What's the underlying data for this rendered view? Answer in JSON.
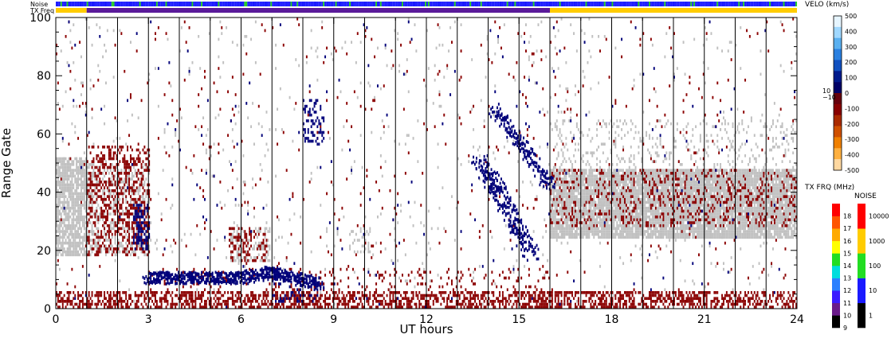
{
  "chart_data": {
    "type": "heatmap",
    "xlabel": "UT hours",
    "ylabel": "Range Gate",
    "xlim": [
      0,
      24
    ],
    "ylim": [
      0,
      100
    ],
    "xticks": [
      0,
      3,
      6,
      9,
      12,
      15,
      18,
      21,
      24
    ],
    "yticks": [
      0,
      20,
      40,
      60,
      80,
      100
    ],
    "grid": "vertical lines every 1 UT hour",
    "top_bars": [
      {
        "label": "Noise",
        "colors": [
          "#1a1aff",
          "#22cc22"
        ]
      },
      {
        "label": "TX Freq",
        "segments": [
          {
            "from": 0,
            "to": 1,
            "color": "#ffcc00"
          },
          {
            "from": 1,
            "to": 16,
            "color": "#5a1a9a"
          },
          {
            "from": 16,
            "to": 24,
            "color": "#ffcc00"
          }
        ]
      }
    ],
    "velocity_colorbar": {
      "title": "VELO (km/s)",
      "ticks": [
        "500",
        "400",
        "300",
        "200",
        "100",
        "0",
        "-100",
        "-200",
        "-300",
        "-400",
        "-500"
      ],
      "center_labels": [
        "10",
        "−10"
      ],
      "colors": [
        "#e6f5ff",
        "#a0d8ff",
        "#5ab0f0",
        "#2a80e0",
        "#1050c0",
        "#001a8c",
        "#000066",
        "#66000c",
        "#880000",
        "#aa2a00",
        "#d05000",
        "#f08000",
        "#ffb040",
        "#ffd8a0"
      ]
    },
    "txfreq_colorbar": {
      "title": "TX FRQ (MHz)",
      "ticks": [
        "9",
        "10",
        "11",
        "12",
        "13",
        "14",
        "15",
        "16",
        "17",
        "18"
      ],
      "colors": [
        "#000000",
        "#6a1a8a",
        "#3a1aff",
        "#2a80ff",
        "#00dddd",
        "#22dd22",
        "#ffff00",
        "#ffaa00",
        "#ff5500",
        "#ff0000"
      ]
    },
    "noise_colorbar": {
      "title": "NOISE",
      "ticks": [
        "1",
        "10",
        "100",
        "1000",
        "10000"
      ],
      "colors": [
        "#000000",
        "#1a1aff",
        "#22dd22",
        "#ffcc00",
        "#ff0000"
      ]
    },
    "regions": [
      {
        "kind": "ground-scatter",
        "color": "#c0c0c0",
        "x": [
          0,
          1
        ],
        "y": [
          18,
          52
        ],
        "density": 0.8
      },
      {
        "kind": "ground-scatter",
        "color": "#c0c0c0",
        "x": [
          1,
          3
        ],
        "y": [
          18,
          50
        ],
        "density": 0.35
      },
      {
        "kind": "ground-scatter",
        "color": "#c0c0c0",
        "x": [
          16,
          24
        ],
        "y": [
          24,
          48
        ],
        "density": 0.9
      },
      {
        "kind": "ground-scatter",
        "color": "#c0c0c0",
        "x": [
          16,
          24
        ],
        "y": [
          48,
          65
        ],
        "density": 0.12
      },
      {
        "kind": "ground-scatter",
        "color": "#c0c0c0",
        "x": [
          5.6,
          6.9
        ],
        "y": [
          16,
          28
        ],
        "density": 0.3
      },
      {
        "kind": "ground-scatter",
        "color": "#c0c0c0",
        "x": [
          9.5,
          10.2
        ],
        "y": [
          19,
          28
        ],
        "density": 0.25
      },
      {
        "kind": "ground-scatter",
        "color": "#c0c0c0",
        "x": [
          0,
          24
        ],
        "y": [
          0,
          100
        ],
        "density": 0.015
      },
      {
        "kind": "velocity",
        "color": "#8b0000",
        "x": [
          0,
          24
        ],
        "y": [
          0,
          6
        ],
        "density": 0.5
      },
      {
        "kind": "velocity",
        "color": "#8b0000",
        "x": [
          3,
          16
        ],
        "y": [
          6,
          14
        ],
        "density": 0.08
      },
      {
        "kind": "velocity",
        "color": "#8b0000",
        "x": [
          1,
          3
        ],
        "y": [
          18,
          56
        ],
        "density": 0.35
      },
      {
        "kind": "velocity",
        "color": "#8b0000",
        "x": [
          0,
          24
        ],
        "y": [
          0,
          100
        ],
        "density": 0.012
      },
      {
        "kind": "velocity",
        "color": "#8b0000",
        "x": [
          16,
          24
        ],
        "y": [
          28,
          48
        ],
        "density": 0.18
      },
      {
        "kind": "velocity",
        "color": "#8b0000",
        "x": [
          5.6,
          6.8
        ],
        "y": [
          16,
          28
        ],
        "density": 0.3
      },
      {
        "kind": "velocity",
        "color": "#00007a",
        "x": [
          2.5,
          3.0
        ],
        "y": [
          20,
          36
        ],
        "density": 0.5
      },
      {
        "kind": "velocity",
        "color": "#00007a",
        "x": [
          7.0,
          8.5
        ],
        "y": [
          2,
          10
        ],
        "density": 0.2
      },
      {
        "kind": "velocity",
        "color": "#00007a",
        "x": [
          8.0,
          8.7
        ],
        "y": [
          56,
          72
        ],
        "density": 0.3
      },
      {
        "kind": "velocity",
        "color": "#00007a",
        "x": [
          0,
          24
        ],
        "y": [
          0,
          100
        ],
        "density": 0.004
      }
    ],
    "tracks": [
      {
        "color": "#00007a",
        "points": [
          [
            13.7,
            50
          ],
          [
            14.3,
            40
          ],
          [
            14.9,
            28
          ],
          [
            15.4,
            18
          ]
        ],
        "width": 0.25
      },
      {
        "color": "#00007a",
        "points": [
          [
            14.2,
            68
          ],
          [
            15.1,
            55
          ],
          [
            16.0,
            42
          ]
        ],
        "width": 0.18
      },
      {
        "color": "#00007a",
        "points": [
          [
            3.0,
            10
          ],
          [
            6.0,
            10
          ],
          [
            7.0,
            12
          ],
          [
            8.5,
            8
          ]
        ],
        "width": 0.2
      }
    ]
  }
}
